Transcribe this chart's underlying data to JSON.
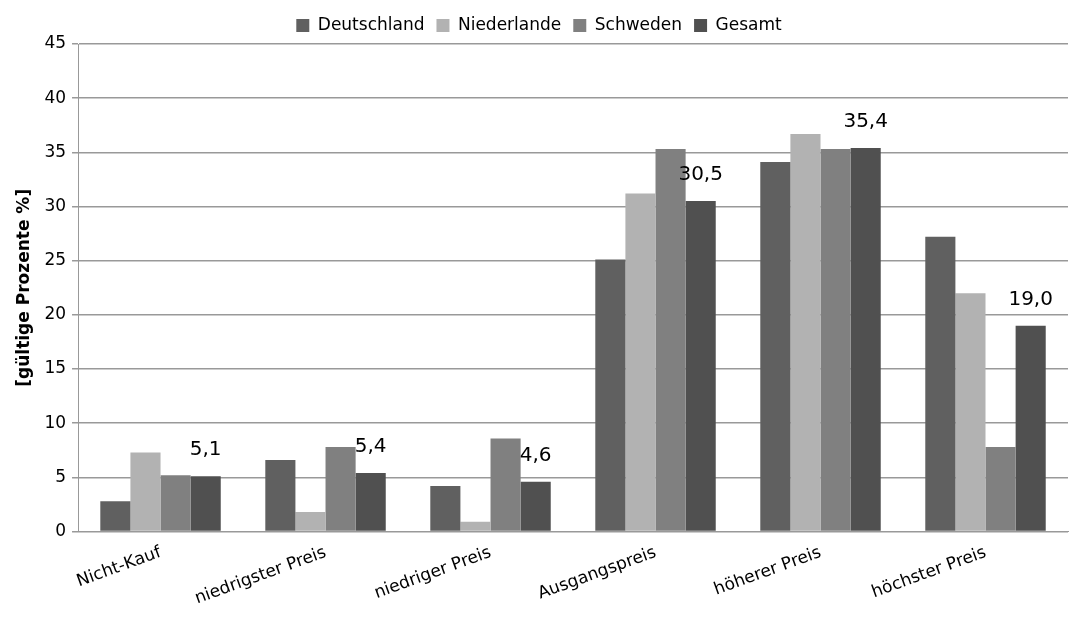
{
  "chart_data": {
    "type": "bar",
    "ylabel": "[gültige Prozente %]",
    "categories": [
      "Nicht-Kauf",
      "niedrigster Preis",
      "niedriger Preis",
      "Ausgangspreis",
      "höherer Preis",
      "höchster Preis"
    ],
    "series": [
      {
        "name": "Deutschland",
        "color": "#606060",
        "values": [
          2.8,
          6.6,
          4.2,
          25.1,
          34.1,
          27.2
        ]
      },
      {
        "name": "Niederlande",
        "color": "#b2b2b2",
        "values": [
          7.3,
          1.8,
          0.9,
          31.2,
          36.7,
          22.0
        ]
      },
      {
        "name": "Schweden",
        "color": "#808080",
        "values": [
          5.2,
          7.8,
          8.6,
          35.3,
          35.3,
          7.8
        ]
      },
      {
        "name": "Gesamt",
        "color": "#505050",
        "values": [
          5.1,
          5.4,
          4.6,
          30.5,
          35.4,
          19.0
        ],
        "value_labels": [
          "5,1",
          "5,4",
          "4,6",
          "30,5",
          "35,4",
          "19,0"
        ]
      }
    ],
    "ylim": [
      0,
      45
    ],
    "yticks": [
      0,
      5,
      10,
      15,
      20,
      25,
      30,
      35,
      40,
      45
    ],
    "grid": "y",
    "legend": "top"
  }
}
